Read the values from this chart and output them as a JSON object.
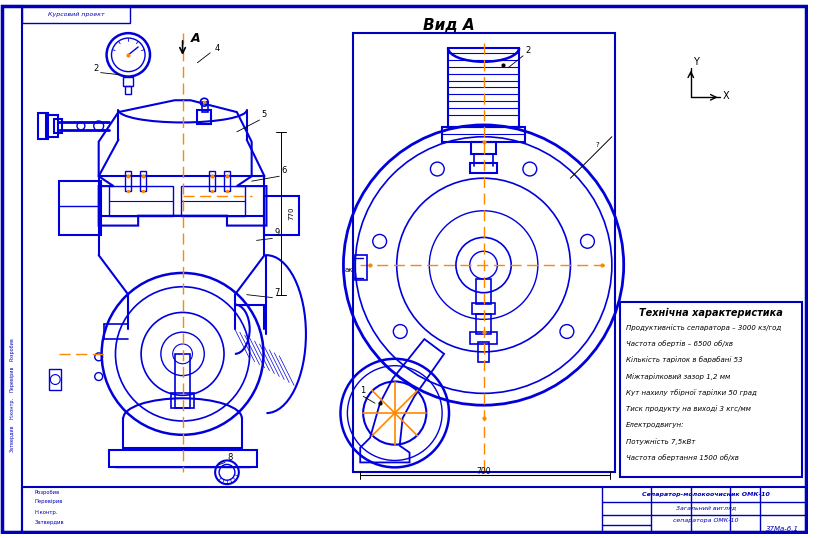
{
  "bg_color": "#ffffff",
  "bc": "#0000bb",
  "lc": "#0000dd",
  "oc": "#ff8800",
  "black": "#000000",
  "view_label": "Вид A",
  "tech_title": "Технічна характеристика",
  "tech_specs": [
    "Продуктивність сепаратора – 3000 кз/год",
    "Частота обертів – 6500 об/хв",
    "Кількість тарілок в барабані 53",
    "Міжтарілковий зазор 1,2 мм",
    "Кут нахилу тбірної тарілки 50 град",
    "Тиск продукту на виході 3 кгс/мм",
    "Електродвигун:",
    "Потужність 7,5кВт",
    "Частота обертання 1500 об/хв"
  ],
  "tb1": "Сепаратор-молокоочисник ОМК-10",
  "tb2": "Загальний вигляд",
  "tb3": "сепаратора ОМК-10",
  "tb4": "37Ма-6.1",
  "top_label": "Курсовий проект"
}
